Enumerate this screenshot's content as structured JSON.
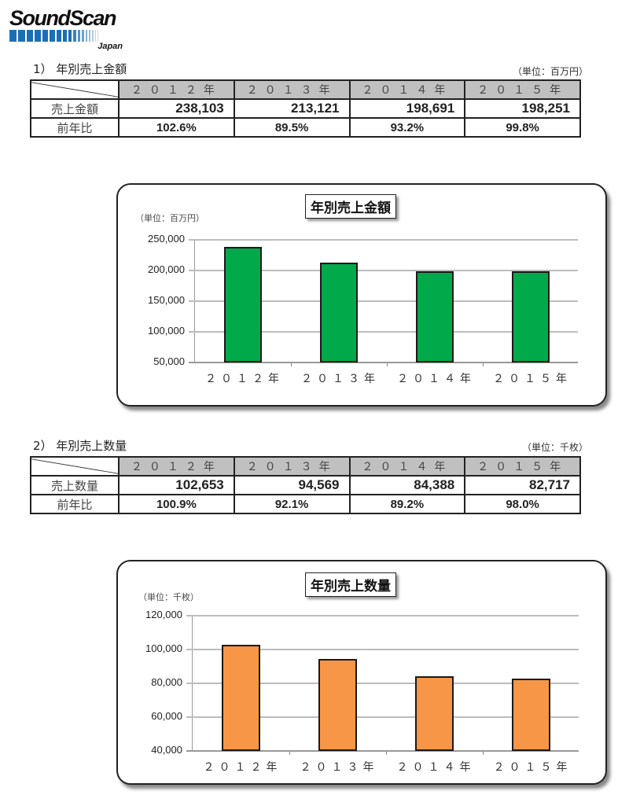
{
  "logo": {
    "text": "SoundScan",
    "subtext": "Japan",
    "bar_color": "#1a6fb5"
  },
  "section1": {
    "title": "1） 年別売上金額",
    "unit": "（単位：百万円）",
    "columns": [
      "２０１２年",
      "２０１３年",
      "２０１４年",
      "２０１５年"
    ],
    "rows": [
      {
        "label": "売上金額",
        "values": [
          "238,103",
          "213,121",
          "198,691",
          "198,251"
        ]
      },
      {
        "label": "前年比",
        "values": [
          "102.6%",
          "89.5%",
          "93.2%",
          "99.8%"
        ]
      }
    ]
  },
  "section2": {
    "title": "2） 年別売上数量",
    "unit": "（単位：千枚）",
    "columns": [
      "２０１２年",
      "２０１３年",
      "２０１４年",
      "２０１５年"
    ],
    "rows": [
      {
        "label": "売上数量",
        "values": [
          "102,653",
          "94,569",
          "84,388",
          "82,717"
        ]
      },
      {
        "label": "前年比",
        "values": [
          "100.9%",
          "92.1%",
          "89.2%",
          "98.0%"
        ]
      }
    ]
  },
  "chart_data": [
    {
      "type": "bar",
      "title": "年別売上金額",
      "unit_label": "（単位：百万円）",
      "categories": [
        "２０１２年",
        "２０１３年",
        "２０１４年",
        "２０１５年"
      ],
      "values": [
        238103,
        213121,
        198691,
        198251
      ],
      "ylim": [
        50000,
        250000
      ],
      "yticks": [
        50000,
        100000,
        150000,
        200000,
        250000
      ],
      "ytick_labels": [
        "50,000",
        "100,000",
        "150,000",
        "200,000",
        "250,000"
      ],
      "xlabel": "",
      "ylabel": "",
      "grid": true,
      "bar_color": "#00aa4a"
    },
    {
      "type": "bar",
      "title": "年別売上数量",
      "unit_label": "（単位：千枚）",
      "categories": [
        "２０１２年",
        "２０１３年",
        "２０１４年",
        "２０１５年"
      ],
      "values": [
        102653,
        94569,
        84388,
        82717
      ],
      "ylim": [
        40000,
        120000
      ],
      "yticks": [
        40000,
        60000,
        80000,
        100000,
        120000
      ],
      "ytick_labels": [
        "40,000",
        "60,000",
        "80,000",
        "100,000",
        "120,000"
      ],
      "xlabel": "",
      "ylabel": "",
      "grid": true,
      "bar_color": "#f79646"
    }
  ]
}
